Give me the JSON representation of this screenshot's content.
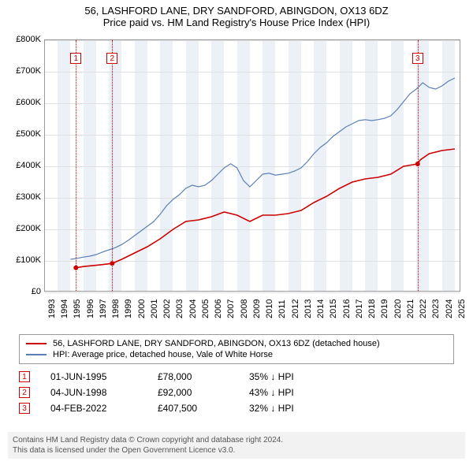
{
  "title": {
    "line1": "56, LASHFORD LANE, DRY SANDFORD, ABINGDON, OX13 6DZ",
    "line2": "Price paid vs. HM Land Registry's House Price Index (HPI)",
    "fontsize": 13
  },
  "chart": {
    "type": "line",
    "background_color": "#ffffff",
    "border_color": "#999999",
    "grid_color": "#e0e0e0",
    "shade_color": "rgba(200,215,235,0.35)",
    "ylim": [
      0,
      800000
    ],
    "ytick_step": 100000,
    "yticks": [
      "£0",
      "£100K",
      "£200K",
      "£300K",
      "£400K",
      "£500K",
      "£600K",
      "£700K",
      "£800K"
    ],
    "xrange": [
      1993,
      2025.5
    ],
    "xticks": [
      1993,
      1994,
      1995,
      1996,
      1997,
      1998,
      1999,
      2000,
      2001,
      2002,
      2003,
      2004,
      2005,
      2006,
      2007,
      2008,
      2009,
      2010,
      2011,
      2012,
      2013,
      2014,
      2015,
      2016,
      2017,
      2018,
      2019,
      2020,
      2021,
      2022,
      2023,
      2024,
      2025
    ],
    "alt_shade_start": 1994,
    "series": [
      {
        "name": "property",
        "label": "56, LASHFORD LANE, DRY SANDFORD, ABINGDON, OX13 6DZ (detached house)",
        "color": "#cc0000",
        "width": 1.6,
        "points": [
          [
            1995.42,
            78000
          ],
          [
            1996,
            82000
          ],
          [
            1997,
            86000
          ],
          [
            1998.25,
            92000
          ],
          [
            1999,
            105000
          ],
          [
            2000,
            125000
          ],
          [
            2001,
            145000
          ],
          [
            2002,
            170000
          ],
          [
            2003,
            200000
          ],
          [
            2004,
            225000
          ],
          [
            2005,
            230000
          ],
          [
            2006,
            240000
          ],
          [
            2007,
            255000
          ],
          [
            2008,
            245000
          ],
          [
            2009,
            225000
          ],
          [
            2010,
            245000
          ],
          [
            2011,
            245000
          ],
          [
            2012,
            250000
          ],
          [
            2013,
            260000
          ],
          [
            2014,
            285000
          ],
          [
            2015,
            305000
          ],
          [
            2016,
            330000
          ],
          [
            2017,
            350000
          ],
          [
            2018,
            360000
          ],
          [
            2019,
            365000
          ],
          [
            2020,
            375000
          ],
          [
            2021,
            400000
          ],
          [
            2022.1,
            407500
          ],
          [
            2022.3,
            420000
          ],
          [
            2023,
            440000
          ],
          [
            2024,
            450000
          ],
          [
            2025,
            455000
          ]
        ],
        "markers": [
          {
            "x": 1995.42,
            "y": 78000
          },
          {
            "x": 1998.25,
            "y": 92000
          },
          {
            "x": 2022.1,
            "y": 407500
          }
        ]
      },
      {
        "name": "hpi",
        "label": "HPI: Average price, detached house, Vale of White Horse",
        "color": "#5b7fb5",
        "width": 1.2,
        "points": [
          [
            1995,
            105000
          ],
          [
            1995.5,
            108000
          ],
          [
            1996,
            112000
          ],
          [
            1996.5,
            115000
          ],
          [
            1997,
            120000
          ],
          [
            1997.5,
            128000
          ],
          [
            1998,
            135000
          ],
          [
            1998.5,
            142000
          ],
          [
            1999,
            152000
          ],
          [
            1999.5,
            165000
          ],
          [
            2000,
            180000
          ],
          [
            2000.5,
            195000
          ],
          [
            2001,
            210000
          ],
          [
            2001.5,
            225000
          ],
          [
            2002,
            248000
          ],
          [
            2002.5,
            275000
          ],
          [
            2003,
            295000
          ],
          [
            2003.5,
            310000
          ],
          [
            2004,
            330000
          ],
          [
            2004.5,
            340000
          ],
          [
            2005,
            335000
          ],
          [
            2005.5,
            340000
          ],
          [
            2006,
            355000
          ],
          [
            2006.5,
            375000
          ],
          [
            2007,
            395000
          ],
          [
            2007.5,
            408000
          ],
          [
            2008,
            395000
          ],
          [
            2008.5,
            355000
          ],
          [
            2009,
            335000
          ],
          [
            2009.5,
            355000
          ],
          [
            2010,
            375000
          ],
          [
            2010.5,
            378000
          ],
          [
            2011,
            372000
          ],
          [
            2011.5,
            375000
          ],
          [
            2012,
            378000
          ],
          [
            2012.5,
            385000
          ],
          [
            2013,
            395000
          ],
          [
            2013.5,
            415000
          ],
          [
            2014,
            440000
          ],
          [
            2014.5,
            460000
          ],
          [
            2015,
            475000
          ],
          [
            2015.5,
            495000
          ],
          [
            2016,
            510000
          ],
          [
            2016.5,
            525000
          ],
          [
            2017,
            535000
          ],
          [
            2017.5,
            545000
          ],
          [
            2018,
            548000
          ],
          [
            2018.5,
            545000
          ],
          [
            2019,
            548000
          ],
          [
            2019.5,
            552000
          ],
          [
            2020,
            560000
          ],
          [
            2020.5,
            580000
          ],
          [
            2021,
            605000
          ],
          [
            2021.5,
            630000
          ],
          [
            2022,
            645000
          ],
          [
            2022.5,
            665000
          ],
          [
            2023,
            650000
          ],
          [
            2023.5,
            645000
          ],
          [
            2024,
            655000
          ],
          [
            2024.5,
            670000
          ],
          [
            2025,
            680000
          ]
        ]
      }
    ],
    "events": [
      {
        "idx": "1",
        "x": 1995.42,
        "marker_top": 16
      },
      {
        "idx": "2",
        "x": 1998.25,
        "marker_top": 16
      },
      {
        "idx": "3",
        "x": 2022.1,
        "marker_top": 16
      }
    ]
  },
  "legend": {
    "border_color": "#999999",
    "items": [
      {
        "color": "#cc0000",
        "label": "56, LASHFORD LANE, DRY SANDFORD, ABINGDON, OX13 6DZ (detached house)"
      },
      {
        "color": "#5b7fb5",
        "label": "HPI: Average price, detached house, Vale of White Horse"
      }
    ]
  },
  "datapoints": {
    "marker_color": "#cc0000",
    "rows": [
      {
        "idx": "1",
        "date": "01-JUN-1995",
        "price": "£78,000",
        "pct": "35% ↓ HPI"
      },
      {
        "idx": "2",
        "date": "04-JUN-1998",
        "price": "£92,000",
        "pct": "43% ↓ HPI"
      },
      {
        "idx": "3",
        "date": "04-FEB-2022",
        "price": "£407,500",
        "pct": "32% ↓ HPI"
      }
    ]
  },
  "footer": {
    "line1": "Contains HM Land Registry data © Crown copyright and database right 2024.",
    "line2": "This data is licensed under the Open Government Licence v3.0.",
    "bg": "#f2f2f2",
    "color": "#555555"
  }
}
